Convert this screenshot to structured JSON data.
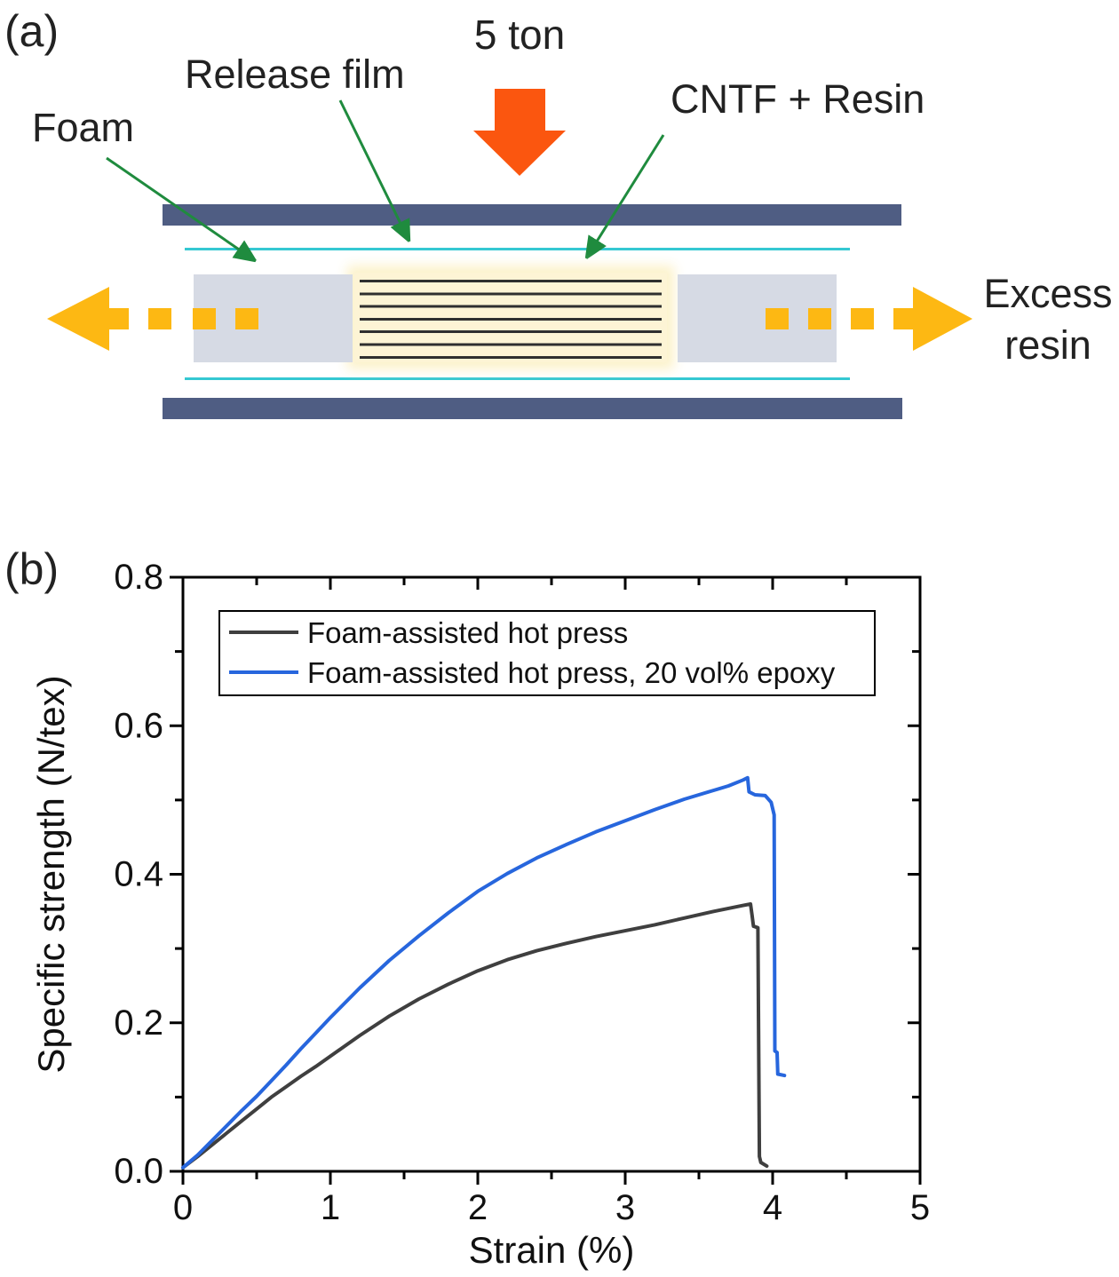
{
  "panel_a": {
    "label": "(a)",
    "force_label": "5 ton",
    "foam_label": "Foam",
    "release_film_label": "Release film",
    "cntf_label": "CNTF + Resin",
    "excess_line1": "Excess",
    "excess_line2": "resin",
    "colors": {
      "press_plate": "#4f5d83",
      "release_film_line": "#35c8d2",
      "foam_block": "#d6dae4",
      "cntf_background": "#fdf4d5",
      "cntf_stripe": "#2f2f2f",
      "excess_resin_arrow": "#fdb813",
      "force_arrow": "#fb560f",
      "annotation_arrow": "#1f8b3e"
    }
  },
  "panel_b": {
    "label": "(b)"
  },
  "chart_data": {
    "type": "line",
    "title": "",
    "xlabel": "Strain (%)",
    "ylabel": "Specific strength (N/tex)",
    "xlim": [
      0,
      5
    ],
    "ylim": [
      0,
      0.8
    ],
    "grid": false,
    "legend_position": "top-left-inside",
    "x_major_ticks": [
      0,
      1,
      2,
      3,
      4,
      5
    ],
    "x_tick_labels": [
      "0",
      "1",
      "2",
      "3",
      "4",
      "5"
    ],
    "x_minor_ticks": [
      0.5,
      1.5,
      2.5,
      3.5,
      4.5
    ],
    "y_major_ticks": [
      0,
      0.2,
      0.4,
      0.6,
      0.8
    ],
    "y_tick_labels": [
      "0.0",
      "0.2",
      "0.4",
      "0.6",
      "0.8"
    ],
    "y_minor_ticks": [
      0.1,
      0.3,
      0.5,
      0.7
    ],
    "series": [
      {
        "name": "Foam-assisted hot press",
        "color": "#3f3f3f",
        "peak": {
          "strain_pct": 3.85,
          "strength_n_per_tex": 0.36
        },
        "points": [
          [
            0,
            0.005
          ],
          [
            0.1,
            0.02
          ],
          [
            0.2,
            0.036
          ],
          [
            0.3,
            0.052
          ],
          [
            0.4,
            0.068
          ],
          [
            0.5,
            0.084
          ],
          [
            0.6,
            0.1
          ],
          [
            0.7,
            0.114
          ],
          [
            0.8,
            0.128
          ],
          [
            0.9,
            0.141
          ],
          [
            1.0,
            0.155
          ],
          [
            1.2,
            0.183
          ],
          [
            1.4,
            0.209
          ],
          [
            1.6,
            0.232
          ],
          [
            1.8,
            0.252
          ],
          [
            2.0,
            0.27
          ],
          [
            2.2,
            0.285
          ],
          [
            2.4,
            0.297
          ],
          [
            2.6,
            0.307
          ],
          [
            2.8,
            0.316
          ],
          [
            3.0,
            0.324
          ],
          [
            3.2,
            0.332
          ],
          [
            3.4,
            0.341
          ],
          [
            3.6,
            0.35
          ],
          [
            3.8,
            0.358
          ],
          [
            3.85,
            0.36
          ],
          [
            3.86,
            0.345
          ],
          [
            3.87,
            0.33
          ],
          [
            3.9,
            0.328
          ],
          [
            3.91,
            0.02
          ],
          [
            3.92,
            0.012
          ],
          [
            3.96,
            0.007
          ]
        ]
      },
      {
        "name": "Foam-assisted hot press, 20 vol% epoxy",
        "color": "#2766dd",
        "peak": {
          "strain_pct": 3.83,
          "strength_n_per_tex": 0.53
        },
        "points": [
          [
            0,
            0.005
          ],
          [
            0.1,
            0.022
          ],
          [
            0.2,
            0.042
          ],
          [
            0.3,
            0.062
          ],
          [
            0.4,
            0.082
          ],
          [
            0.5,
            0.101
          ],
          [
            0.6,
            0.122
          ],
          [
            0.7,
            0.143
          ],
          [
            0.8,
            0.165
          ],
          [
            0.9,
            0.186
          ],
          [
            1.0,
            0.207
          ],
          [
            1.2,
            0.247
          ],
          [
            1.4,
            0.284
          ],
          [
            1.6,
            0.317
          ],
          [
            1.8,
            0.348
          ],
          [
            2.0,
            0.377
          ],
          [
            2.2,
            0.401
          ],
          [
            2.4,
            0.422
          ],
          [
            2.6,
            0.44
          ],
          [
            2.8,
            0.457
          ],
          [
            3.0,
            0.472
          ],
          [
            3.2,
            0.487
          ],
          [
            3.4,
            0.501
          ],
          [
            3.6,
            0.513
          ],
          [
            3.7,
            0.519
          ],
          [
            3.8,
            0.527
          ],
          [
            3.83,
            0.53
          ],
          [
            3.84,
            0.511
          ],
          [
            3.88,
            0.507
          ],
          [
            3.95,
            0.506
          ],
          [
            3.99,
            0.497
          ],
          [
            4.01,
            0.48
          ],
          [
            4.015,
            0.162
          ],
          [
            4.03,
            0.16
          ],
          [
            4.035,
            0.131
          ],
          [
            4.08,
            0.129
          ]
        ]
      }
    ]
  }
}
